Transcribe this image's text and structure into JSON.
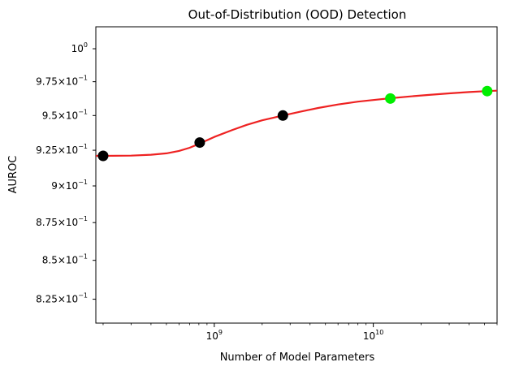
{
  "chart_data": {
    "type": "scatter",
    "title": "Out-of-Distribution (OOD) Detection",
    "xlabel": "Number of Model Parameters",
    "ylabel": "AUROC",
    "x_scale": "log",
    "y_scale": "log",
    "xlim": [
      180000000,
      60000000000
    ],
    "ylim": [
      0.81,
      1.017
    ],
    "grid": false,
    "legend": "none",
    "x_ticks": [
      {
        "value": 1000000000,
        "base": "10",
        "exp": "9"
      },
      {
        "value": 10000000000,
        "base": "10",
        "exp": "10"
      }
    ],
    "y_ticks": [
      {
        "value": 1.0,
        "base": "10",
        "exp": "0"
      },
      {
        "value": 0.975,
        "mant": "9.75",
        "base": "10",
        "exp": "−1"
      },
      {
        "value": 0.95,
        "mant": "9.5",
        "base": "10",
        "exp": "−1"
      },
      {
        "value": 0.925,
        "mant": "9.25",
        "base": "10",
        "exp": "−1"
      },
      {
        "value": 0.9,
        "mant": "9",
        "base": "10",
        "exp": "−1"
      },
      {
        "value": 0.875,
        "mant": "8.75",
        "base": "10",
        "exp": "−1"
      },
      {
        "value": 0.85,
        "mant": "8.5",
        "base": "10",
        "exp": "−1"
      },
      {
        "value": 0.825,
        "mant": "8.25",
        "base": "10",
        "exp": "−1"
      }
    ],
    "points": [
      {
        "x": 200000000,
        "y": 0.921,
        "color": "#000000"
      },
      {
        "x": 810000000,
        "y": 0.9305,
        "color": "#000000"
      },
      {
        "x": 2700000000,
        "y": 0.95,
        "color": "#000000"
      },
      {
        "x": 12800000000,
        "y": 0.9625,
        "color": "#00ee00"
      },
      {
        "x": 52000000000,
        "y": 0.968,
        "color": "#00ee00"
      }
    ],
    "fit": {
      "color": "#ee2222",
      "x": [
        180000000,
        200000000,
        300000000,
        400000000,
        500000000,
        600000000,
        700000000,
        810000000,
        1000000000,
        1300000000,
        1600000000,
        2000000000,
        2700000000,
        3500000000,
        4500000000,
        6000000000,
        8000000000,
        10000000000,
        12800000000,
        17000000000,
        22000000000,
        30000000000,
        40000000000,
        52000000000,
        60000000000
      ],
      "y": [
        0.921,
        0.921,
        0.9212,
        0.9218,
        0.9228,
        0.9245,
        0.9268,
        0.9298,
        0.9345,
        0.9395,
        0.9432,
        0.9465,
        0.95,
        0.9529,
        0.9555,
        0.9581,
        0.9602,
        0.9614,
        0.9627,
        0.964,
        0.9651,
        0.9663,
        0.9673,
        0.968,
        0.9683
      ]
    }
  }
}
